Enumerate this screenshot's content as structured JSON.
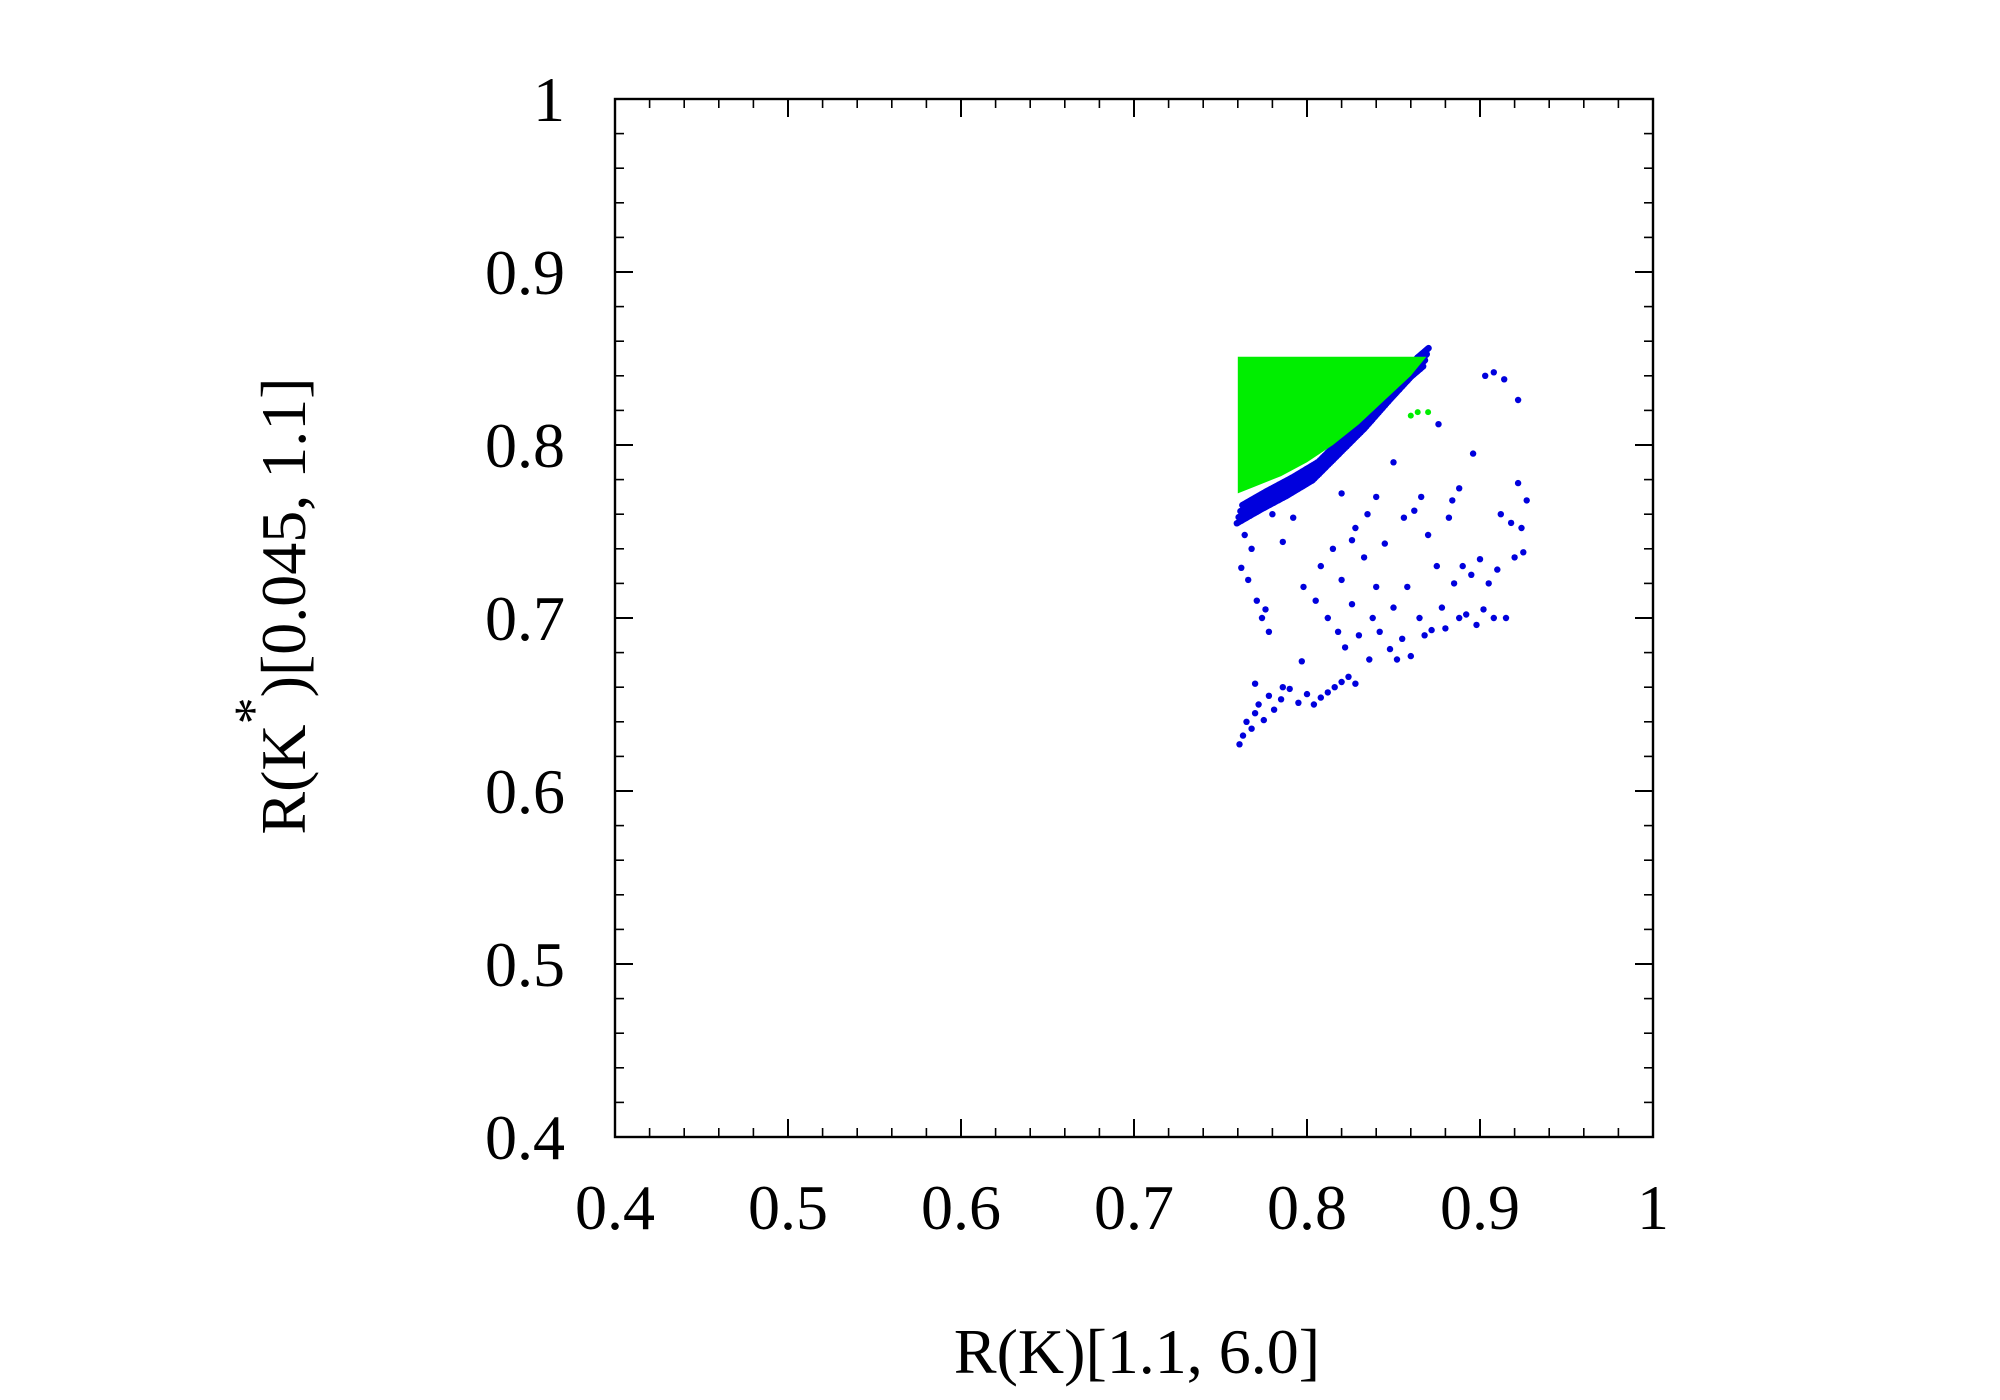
{
  "chart_data": {
    "type": "scatter",
    "title": "",
    "xlabel": "R(K)[1.1, 6.0]",
    "ylabel": {
      "prefix": "R(K",
      "superscript": "*",
      "suffix": ")[0.045, 1.1]"
    },
    "xlim": [
      0.4,
      1.0
    ],
    "ylim": [
      0.4,
      1.0
    ],
    "x_ticks": [
      "0.4",
      "0.5",
      "0.6",
      "0.7",
      "0.8",
      "0.9",
      "1"
    ],
    "y_ticks": [
      "0.4",
      "0.5",
      "0.6",
      "0.7",
      "0.8",
      "0.9",
      "1"
    ],
    "x_tick_values": [
      0.4,
      0.5,
      0.6,
      0.7,
      0.8,
      0.9,
      1.0
    ],
    "y_tick_values": [
      0.4,
      0.5,
      0.6,
      0.7,
      0.8,
      0.9,
      1.0
    ],
    "minor_ticks_per_major": 5,
    "grid": false,
    "legend": "none",
    "series": [
      {
        "color": "#0000dd",
        "marker": "dot",
        "points": [
          [
            0.761,
            0.627
          ],
          [
            0.763,
            0.632
          ],
          [
            0.765,
            0.64
          ],
          [
            0.768,
            0.636
          ],
          [
            0.77,
            0.645
          ],
          [
            0.772,
            0.65
          ],
          [
            0.775,
            0.641
          ],
          [
            0.778,
            0.655
          ],
          [
            0.781,
            0.647
          ],
          [
            0.785,
            0.653
          ],
          [
            0.79,
            0.659
          ],
          [
            0.795,
            0.651
          ],
          [
            0.8,
            0.656
          ],
          [
            0.804,
            0.65
          ],
          [
            0.808,
            0.654
          ],
          [
            0.812,
            0.657
          ],
          [
            0.816,
            0.66
          ],
          [
            0.82,
            0.663
          ],
          [
            0.824,
            0.666
          ],
          [
            0.828,
            0.662
          ],
          [
            0.77,
            0.662
          ],
          [
            0.786,
            0.66
          ],
          [
            0.797,
            0.675
          ],
          [
            0.762,
            0.729
          ],
          [
            0.766,
            0.722
          ],
          [
            0.771,
            0.71
          ],
          [
            0.774,
            0.7
          ],
          [
            0.778,
            0.692
          ],
          [
            0.776,
            0.705
          ],
          [
            0.798,
            0.718
          ],
          [
            0.805,
            0.71
          ],
          [
            0.808,
            0.73
          ],
          [
            0.812,
            0.7
          ],
          [
            0.815,
            0.74
          ],
          [
            0.818,
            0.692
          ],
          [
            0.82,
            0.722
          ],
          [
            0.822,
            0.683
          ],
          [
            0.826,
            0.708
          ],
          [
            0.83,
            0.69
          ],
          [
            0.833,
            0.735
          ],
          [
            0.836,
            0.676
          ],
          [
            0.838,
            0.7
          ],
          [
            0.84,
            0.718
          ],
          [
            0.842,
            0.692
          ],
          [
            0.845,
            0.743
          ],
          [
            0.848,
            0.682
          ],
          [
            0.85,
            0.706
          ],
          [
            0.852,
            0.676
          ],
          [
            0.855,
            0.688
          ],
          [
            0.858,
            0.718
          ],
          [
            0.86,
            0.678
          ],
          [
            0.862,
            0.762
          ],
          [
            0.865,
            0.7
          ],
          [
            0.868,
            0.69
          ],
          [
            0.87,
            0.748
          ],
          [
            0.872,
            0.693
          ],
          [
            0.875,
            0.73
          ],
          [
            0.878,
            0.706
          ],
          [
            0.88,
            0.694
          ],
          [
            0.882,
            0.758
          ],
          [
            0.885,
            0.72
          ],
          [
            0.888,
            0.7
          ],
          [
            0.89,
            0.73
          ],
          [
            0.892,
            0.702
          ],
          [
            0.895,
            0.725
          ],
          [
            0.898,
            0.696
          ],
          [
            0.9,
            0.734
          ],
          [
            0.902,
            0.705
          ],
          [
            0.905,
            0.72
          ],
          [
            0.908,
            0.7
          ],
          [
            0.91,
            0.728
          ],
          [
            0.912,
            0.76
          ],
          [
            0.915,
            0.7
          ],
          [
            0.918,
            0.755
          ],
          [
            0.92,
            0.735
          ],
          [
            0.922,
            0.778
          ],
          [
            0.924,
            0.752
          ],
          [
            0.927,
            0.768
          ],
          [
            0.925,
            0.738
          ],
          [
            0.888,
            0.775
          ],
          [
            0.896,
            0.795
          ],
          [
            0.903,
            0.84
          ],
          [
            0.908,
            0.842
          ],
          [
            0.914,
            0.838
          ],
          [
            0.922,
            0.826
          ],
          [
            0.876,
            0.812
          ],
          [
            0.884,
            0.768
          ],
          [
            0.85,
            0.79
          ],
          [
            0.84,
            0.77
          ],
          [
            0.835,
            0.76
          ],
          [
            0.826,
            0.745
          ],
          [
            0.82,
            0.772
          ],
          [
            0.792,
            0.758
          ],
          [
            0.786,
            0.744
          ],
          [
            0.78,
            0.76
          ],
          [
            0.764,
            0.748
          ],
          [
            0.768,
            0.74
          ],
          [
            0.828,
            0.752
          ],
          [
            0.856,
            0.758
          ],
          [
            0.866,
            0.77
          ]
        ],
        "edge": [
          [
            0.761,
            0.76
          ],
          [
            0.775,
            0.768
          ],
          [
            0.79,
            0.776
          ],
          [
            0.805,
            0.785
          ],
          [
            0.82,
            0.8
          ],
          [
            0.835,
            0.815
          ],
          [
            0.85,
            0.832
          ],
          [
            0.862,
            0.845
          ],
          [
            0.869,
            0.851
          ]
        ]
      },
      {
        "color": "#00ee00",
        "marker": "dense-fill",
        "region": [
          [
            0.76,
            0.851
          ],
          [
            0.869,
            0.851
          ],
          [
            0.86,
            0.84
          ],
          [
            0.845,
            0.826
          ],
          [
            0.83,
            0.812
          ],
          [
            0.815,
            0.8
          ],
          [
            0.8,
            0.79
          ],
          [
            0.785,
            0.782
          ],
          [
            0.77,
            0.776
          ],
          [
            0.76,
            0.772
          ]
        ],
        "points": [
          [
            0.86,
            0.817
          ],
          [
            0.864,
            0.819
          ],
          [
            0.87,
            0.819
          ]
        ]
      }
    ]
  }
}
